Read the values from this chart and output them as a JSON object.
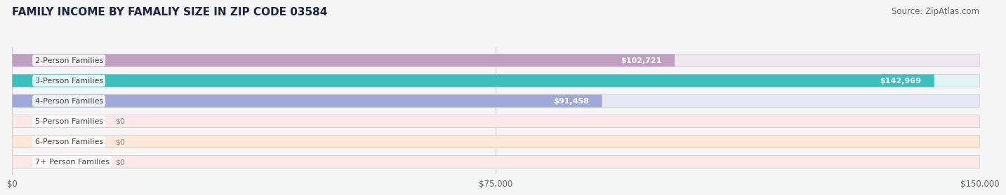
{
  "title": "FAMILY INCOME BY FAMALIY SIZE IN ZIP CODE 03584",
  "source": "Source: ZipAtlas.com",
  "categories": [
    "2-Person Families",
    "3-Person Families",
    "4-Person Families",
    "5-Person Families",
    "6-Person Families",
    "7+ Person Families"
  ],
  "values": [
    102721,
    142969,
    91458,
    0,
    0,
    0
  ],
  "bar_colors": [
    "#c09fc0",
    "#3bbfbf",
    "#a0a8d8",
    "#f4a0a8",
    "#f4c890",
    "#f4a8a0"
  ],
  "bar_bg_colors": [
    "#f0e8f0",
    "#e0f4f4",
    "#e8e8f4",
    "#fce8ea",
    "#fce8d8",
    "#fce8e8"
  ],
  "value_labels": [
    "$102,721",
    "$142,969",
    "$91,458",
    "$0",
    "$0",
    "$0"
  ],
  "xlim": [
    0,
    150000
  ],
  "xticks": [
    0,
    75000,
    150000
  ],
  "xticklabels": [
    "$0",
    "$75,000",
    "$150,000"
  ],
  "background_color": "#f5f5f5",
  "bar_height": 0.62,
  "title_fontsize": 11,
  "source_fontsize": 8.5,
  "label_fontsize": 8,
  "value_fontsize": 8
}
